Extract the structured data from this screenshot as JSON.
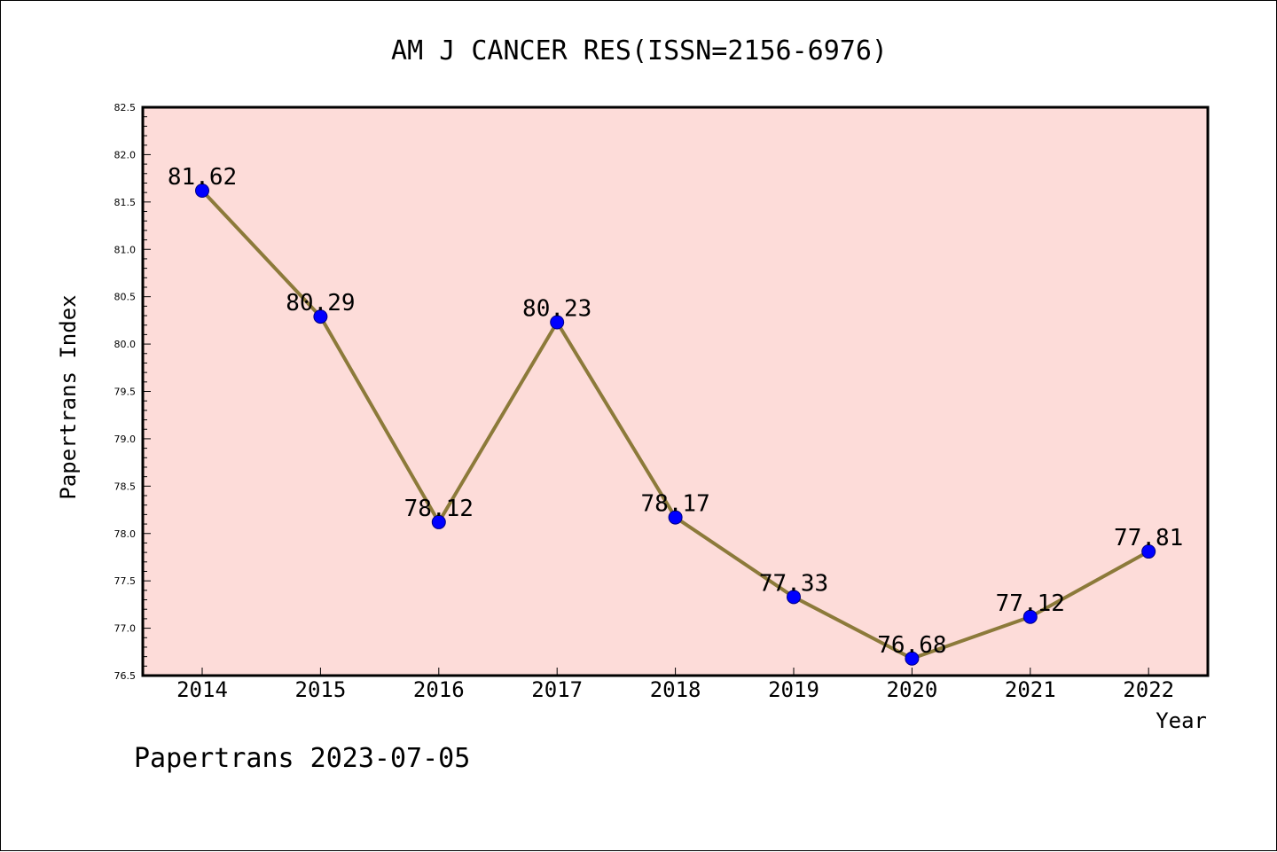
{
  "colors": {
    "plot_background": "#fddcd9",
    "line": "#8c7a3a",
    "marker_fill": "#0000ff",
    "marker_stroke": "#000080",
    "axis": "#000000"
  },
  "chart_data": {
    "type": "line",
    "title": "AM J CANCER RES(ISSN=2156-6976)",
    "xlabel": "Year",
    "ylabel": "Papertrans Index",
    "categories": [
      "2014",
      "2015",
      "2016",
      "2017",
      "2018",
      "2019",
      "2020",
      "2021",
      "2022"
    ],
    "values": [
      81.62,
      80.29,
      78.12,
      80.23,
      78.17,
      77.33,
      76.68,
      77.12,
      77.81
    ],
    "data_labels": [
      "81.62",
      "80.29",
      "78.12",
      "80.23",
      "78.17",
      "77.33",
      "76.68",
      "77.12",
      "77.81"
    ],
    "ylim": [
      76.5,
      82.5
    ],
    "yticks": [
      "76.5",
      "77.0",
      "77.5",
      "78.0",
      "78.5",
      "79.0",
      "79.5",
      "80.0",
      "80.5",
      "81.0",
      "81.5",
      "82.0",
      "82.5"
    ],
    "grid": false,
    "legend": "none"
  },
  "footer": {
    "text": "Papertrans 2023-07-05"
  }
}
